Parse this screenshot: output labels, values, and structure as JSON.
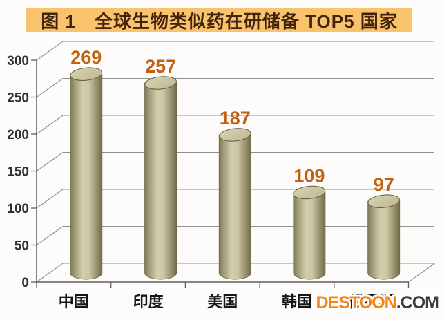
{
  "title": "图 1　全球生物类似药在研储备 TOP5 国家",
  "watermark": {
    "brand": "DESTOON",
    "suffix": ".COM"
  },
  "colors": {
    "banner_bg": "#f9c36d",
    "banner_text": "#42230d",
    "grid": "#909090",
    "axis": "#5f5f5f",
    "tick_label": "#2f2f2f",
    "category_label": "#161616",
    "value_label": "#c06213",
    "bar_body": "#b5b08a",
    "bar_top": "#ccc7a2",
    "watermark_brand": "#f58516",
    "watermark_suffix": "#3d3d3d"
  },
  "chart_data": {
    "type": "bar",
    "style": "3d-cylinder",
    "title": "图 1　全球生物类似药在研储备 TOP5 国家",
    "categories": [
      "中国",
      "印度",
      "美国",
      "韩国",
      "俄罗斯"
    ],
    "values": [
      269,
      257,
      187,
      109,
      97
    ],
    "yticks": [
      0,
      50,
      100,
      150,
      200,
      250,
      300
    ],
    "ylim": [
      0,
      300
    ],
    "xlabel": "",
    "ylabel": "",
    "grid": true,
    "legend": false
  }
}
